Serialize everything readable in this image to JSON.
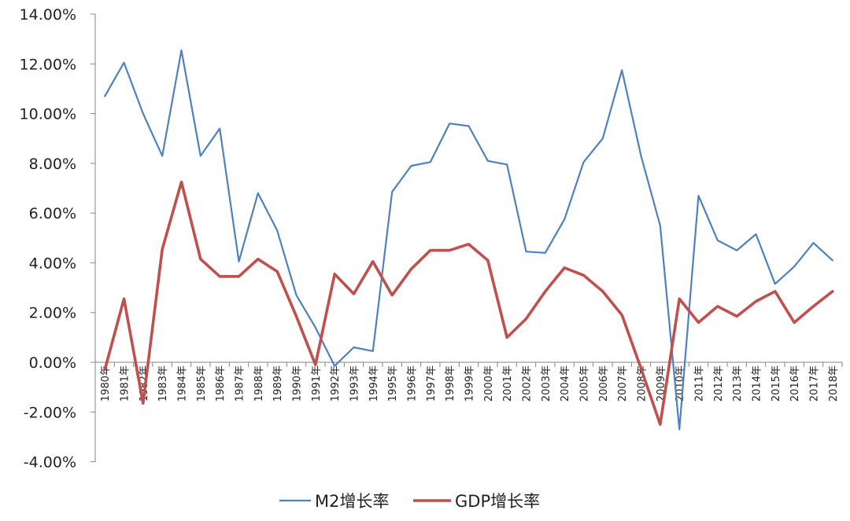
{
  "chart_data": {
    "type": "line",
    "categories": [
      "1980年",
      "1981年",
      "1982年",
      "1983年",
      "1984年",
      "1985年",
      "1986年",
      "1987年",
      "1988年",
      "1989年",
      "1990年",
      "1991年",
      "1992年",
      "1993年",
      "1994年",
      "1995年",
      "1996年",
      "1997年",
      "1998年",
      "1999年",
      "2000年",
      "2001年",
      "2002年",
      "2003年",
      "2004年",
      "2005年",
      "2006年",
      "2007年",
      "2008年",
      "2009年",
      "2010年",
      "2011年",
      "2012年",
      "2013年",
      "2014年",
      "2015年",
      "2016年",
      "2017年",
      "2018年"
    ],
    "series": [
      {
        "name": "M2增长率",
        "color": "#4f81bd",
        "values": [
          10.7,
          12.05,
          10.0,
          8.3,
          12.55,
          8.3,
          9.4,
          4.05,
          6.8,
          5.3,
          2.7,
          1.4,
          -0.15,
          0.6,
          0.45,
          6.85,
          7.9,
          8.05,
          9.6,
          9.5,
          8.1,
          7.95,
          4.45,
          4.4,
          5.75,
          8.05,
          9.0,
          11.75,
          8.3,
          5.5,
          -2.7,
          6.7,
          4.9,
          4.5,
          5.15,
          3.15,
          3.85,
          4.8,
          4.1
        ]
      },
      {
        "name": "GDP增长率",
        "color": "#c0504d",
        "values": [
          -0.3,
          2.55,
          -1.65,
          4.55,
          7.25,
          4.15,
          3.45,
          3.45,
          4.15,
          3.65,
          1.85,
          -0.1,
          3.55,
          2.75,
          4.05,
          2.7,
          3.75,
          4.5,
          4.5,
          4.75,
          4.1,
          1.0,
          1.75,
          2.85,
          3.8,
          3.5,
          2.85,
          1.9,
          -0.25,
          -2.5,
          2.55,
          1.6,
          2.25,
          1.85,
          2.45,
          2.85,
          1.6,
          2.25,
          2.85
        ]
      }
    ],
    "ylim": [
      -4,
      14
    ],
    "yticks": [
      "-4.00%",
      "-2.00%",
      "0.00%",
      "2.00%",
      "4.00%",
      "6.00%",
      "8.00%",
      "10.00%",
      "12.00%",
      "14.00%"
    ],
    "ytick_values": [
      -4,
      -2,
      0,
      2,
      4,
      6,
      8,
      10,
      12,
      14
    ],
    "grid": false,
    "legend_position": "bottom"
  }
}
